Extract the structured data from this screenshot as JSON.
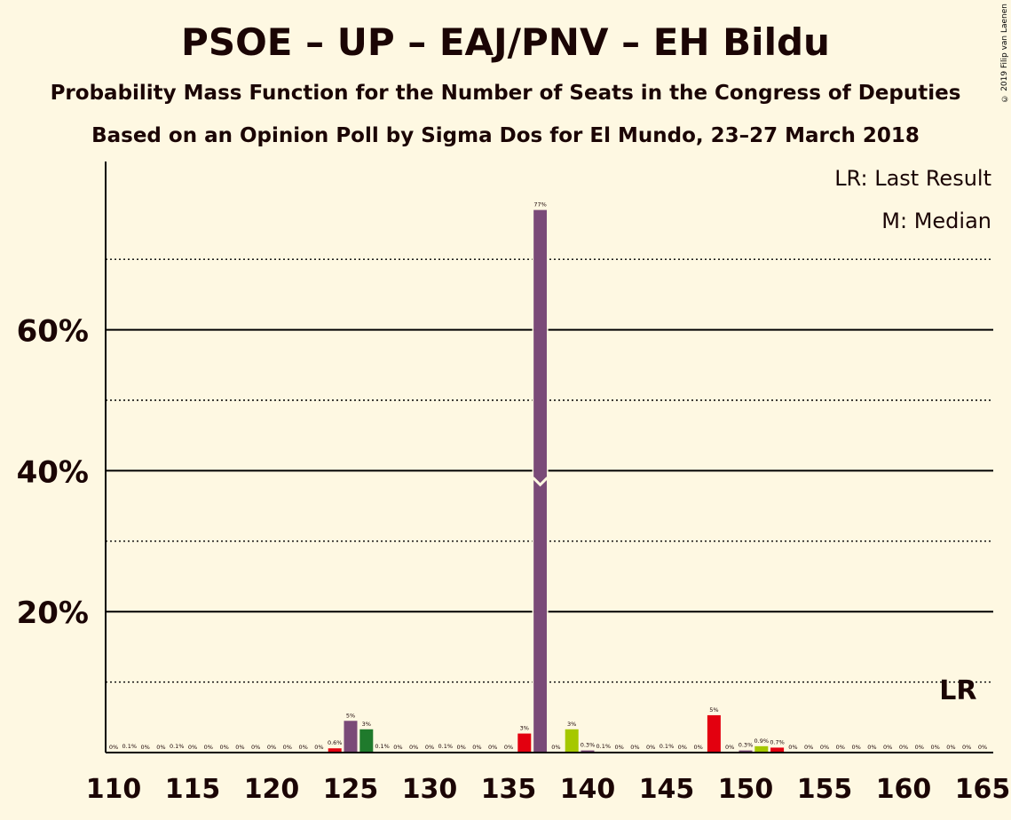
{
  "header": {
    "title": "PSOE – UP – EAJ/PNV – EH Bildu",
    "subtitle": "Probability Mass Function for the Number of Seats in the Congress of Deputies",
    "source": "Based on an Opinion Poll by Sigma Dos for El Mundo, 23–27 March 2018",
    "copyright": "© 2019 Filip van Laenen"
  },
  "colors": {
    "background": "#fef8e2",
    "text": "#1b0505",
    "median_bar": "#7a4a78",
    "purple": "#7a4a78",
    "green": "#1f7a2c",
    "red": "#e3000f",
    "yellowgreen": "#a5c800"
  },
  "chart_data": {
    "type": "bar",
    "title": "PSOE – UP – EAJ/PNV – EH Bildu",
    "xlabel": "",
    "ylabel": "",
    "x_ticks": [
      110,
      115,
      120,
      125,
      130,
      135,
      140,
      145,
      150,
      155,
      160,
      165
    ],
    "y_ticks": [
      "20%",
      "40%",
      "60%"
    ],
    "ylim": [
      0,
      80
    ],
    "xlim": [
      110,
      165
    ],
    "grid": "solid major lines at 20%, 40%, 60%; dotted lines at 10%, 30%, 50%, 70%",
    "legend": {
      "position": "top-right",
      "entries": [
        "LR: Last Result",
        "M: Median"
      ]
    },
    "median": 137,
    "last_result": 163,
    "last_result_label": "LR",
    "bars": [
      {
        "x": 110,
        "value": 0,
        "label": "0%",
        "color": "#7a4a78"
      },
      {
        "x": 111,
        "value": 0.1,
        "label": "0.1%",
        "color": "#7a4a78"
      },
      {
        "x": 112,
        "value": 0,
        "label": "0%",
        "color": "#7a4a78"
      },
      {
        "x": 113,
        "value": 0,
        "label": "0%",
        "color": "#7a4a78"
      },
      {
        "x": 114,
        "value": 0.1,
        "label": "0.1%",
        "color": "#7a4a78"
      },
      {
        "x": 115,
        "value": 0,
        "label": "0%",
        "color": "#7a4a78"
      },
      {
        "x": 116,
        "value": 0,
        "label": "0%",
        "color": "#7a4a78"
      },
      {
        "x": 117,
        "value": 0,
        "label": "0%",
        "color": "#7a4a78"
      },
      {
        "x": 118,
        "value": 0,
        "label": "0%",
        "color": "#7a4a78"
      },
      {
        "x": 119,
        "value": 0,
        "label": "0%",
        "color": "#7a4a78"
      },
      {
        "x": 120,
        "value": 0,
        "label": "0%",
        "color": "#7a4a78"
      },
      {
        "x": 121,
        "value": 0,
        "label": "0%",
        "color": "#7a4a78"
      },
      {
        "x": 122,
        "value": 0,
        "label": "0%",
        "color": "#7a4a78"
      },
      {
        "x": 123,
        "value": 0,
        "label": "0%",
        "color": "#7a4a78"
      },
      {
        "x": 124,
        "value": 0.6,
        "label": "0.6%",
        "color": "#e3000f"
      },
      {
        "x": 125,
        "value": 4.5,
        "label": "5%",
        "color": "#7a4a78"
      },
      {
        "x": 126,
        "value": 3.3,
        "label": "3%",
        "color": "#1f7a2c"
      },
      {
        "x": 127,
        "value": 0.1,
        "label": "0.1%",
        "color": "#7a4a78"
      },
      {
        "x": 128,
        "value": 0,
        "label": "0%",
        "color": "#7a4a78"
      },
      {
        "x": 129,
        "value": 0,
        "label": "0%",
        "color": "#7a4a78"
      },
      {
        "x": 130,
        "value": 0,
        "label": "0%",
        "color": "#7a4a78"
      },
      {
        "x": 131,
        "value": 0.1,
        "label": "0.1%",
        "color": "#7a4a78"
      },
      {
        "x": 132,
        "value": 0,
        "label": "0%",
        "color": "#7a4a78"
      },
      {
        "x": 133,
        "value": 0,
        "label": "0%",
        "color": "#7a4a78"
      },
      {
        "x": 134,
        "value": 0,
        "label": "0%",
        "color": "#7a4a78"
      },
      {
        "x": 135,
        "value": 0,
        "label": "0%",
        "color": "#7a4a78"
      },
      {
        "x": 136,
        "value": 2.7,
        "label": "3%",
        "color": "#e3000f"
      },
      {
        "x": 137,
        "value": 77,
        "label": "77%",
        "color": "#7a4a78"
      },
      {
        "x": 138,
        "value": 0,
        "label": "0%",
        "color": "#7a4a78"
      },
      {
        "x": 139,
        "value": 3.3,
        "label": "3%",
        "color": "#a5c800"
      },
      {
        "x": 140,
        "value": 0.3,
        "label": "0.3%",
        "color": "#7a4a78"
      },
      {
        "x": 141,
        "value": 0.1,
        "label": "0.1%",
        "color": "#7a4a78"
      },
      {
        "x": 142,
        "value": 0,
        "label": "0%",
        "color": "#7a4a78"
      },
      {
        "x": 143,
        "value": 0,
        "label": "0%",
        "color": "#7a4a78"
      },
      {
        "x": 144,
        "value": 0,
        "label": "0%",
        "color": "#7a4a78"
      },
      {
        "x": 145,
        "value": 0.1,
        "label": "0.1%",
        "color": "#7a4a78"
      },
      {
        "x": 146,
        "value": 0,
        "label": "0%",
        "color": "#7a4a78"
      },
      {
        "x": 147,
        "value": 0,
        "label": "0%",
        "color": "#7a4a78"
      },
      {
        "x": 148,
        "value": 5.3,
        "label": "5%",
        "color": "#e3000f"
      },
      {
        "x": 149,
        "value": 0,
        "label": "0%",
        "color": "#7a4a78"
      },
      {
        "x": 150,
        "value": 0.3,
        "label": "0.3%",
        "color": "#7a4a78"
      },
      {
        "x": 151,
        "value": 0.9,
        "label": "0.9%",
        "color": "#a5c800"
      },
      {
        "x": 152,
        "value": 0.7,
        "label": "0.7%",
        "color": "#e3000f"
      },
      {
        "x": 153,
        "value": 0,
        "label": "0%",
        "color": "#7a4a78"
      },
      {
        "x": 154,
        "value": 0,
        "label": "0%",
        "color": "#7a4a78"
      },
      {
        "x": 155,
        "value": 0,
        "label": "0%",
        "color": "#7a4a78"
      },
      {
        "x": 156,
        "value": 0,
        "label": "0%",
        "color": "#7a4a78"
      },
      {
        "x": 157,
        "value": 0,
        "label": "0%",
        "color": "#7a4a78"
      },
      {
        "x": 158,
        "value": 0,
        "label": "0%",
        "color": "#7a4a78"
      },
      {
        "x": 159,
        "value": 0,
        "label": "0%",
        "color": "#7a4a78"
      },
      {
        "x": 160,
        "value": 0,
        "label": "0%",
        "color": "#7a4a78"
      },
      {
        "x": 161,
        "value": 0,
        "label": "0%",
        "color": "#7a4a78"
      },
      {
        "x": 162,
        "value": 0,
        "label": "0%",
        "color": "#7a4a78"
      },
      {
        "x": 163,
        "value": 0,
        "label": "0%",
        "color": "#7a4a78"
      },
      {
        "x": 164,
        "value": 0,
        "label": "0%",
        "color": "#7a4a78"
      },
      {
        "x": 165,
        "value": 0,
        "label": "0%",
        "color": "#7a4a78"
      }
    ]
  }
}
